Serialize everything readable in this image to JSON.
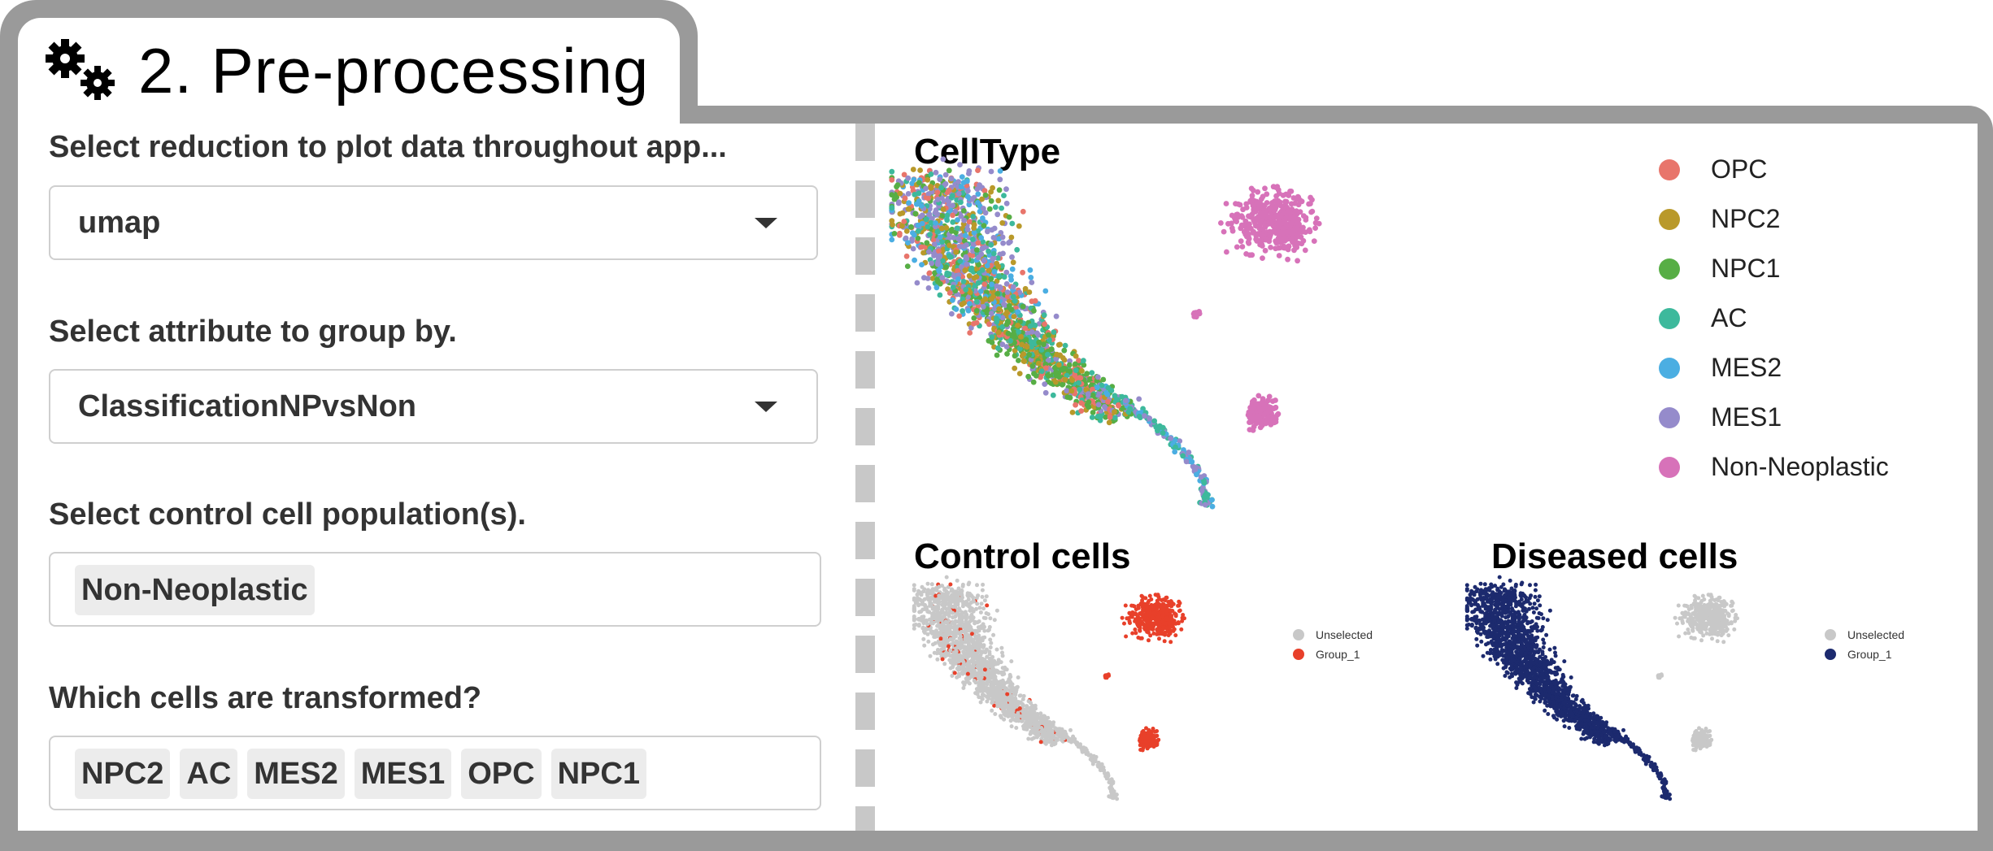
{
  "panel": {
    "title": "2. Pre-processing",
    "icon": "gears-icon"
  },
  "controls": {
    "reduction": {
      "label": "Select reduction to plot data throughout app...",
      "value": "umap"
    },
    "group_by": {
      "label": "Select attribute to group by.",
      "value": "ClassificationNPvsNon"
    },
    "control_pop": {
      "label": "Select control cell population(s).",
      "chips": [
        "Non-Neoplastic"
      ]
    },
    "transformed": {
      "label": "Which cells are transformed?",
      "chips": [
        "NPC2",
        "AC",
        "MES2",
        "MES1",
        "OPC",
        "NPC1"
      ]
    }
  },
  "plots": {
    "celltype": {
      "title": "CellType",
      "legend": [
        {
          "name": "OPC",
          "color": "#E8756B"
        },
        {
          "name": "NPC2",
          "color": "#B9992A"
        },
        {
          "name": "NPC1",
          "color": "#57AE45"
        },
        {
          "name": "AC",
          "color": "#3DB99C"
        },
        {
          "name": "MES2",
          "color": "#4BAEE2"
        },
        {
          "name": "MES1",
          "color": "#958BCB"
        },
        {
          "name": "Non-Neoplastic",
          "color": "#D772B9"
        }
      ]
    },
    "control": {
      "title": "Control cells",
      "legend": [
        {
          "name": "Unselected",
          "color": "#c8c8c8"
        },
        {
          "name": "Group_1",
          "color": "#E8402A"
        }
      ]
    },
    "diseased": {
      "title": "Diseased cells",
      "legend": [
        {
          "name": "Unselected",
          "color": "#c8c8c8"
        },
        {
          "name": "Group_1",
          "color": "#1C2A6E"
        }
      ]
    }
  }
}
